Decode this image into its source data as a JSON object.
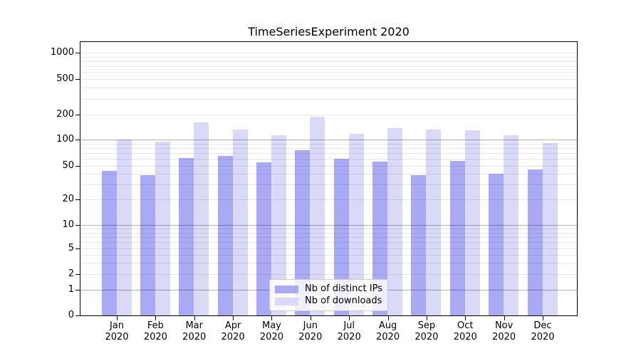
{
  "chart_data": {
    "type": "bar",
    "title": "TimeSeriesExperiment 2020",
    "categories": [
      "Jan",
      "Feb",
      "Mar",
      "Apr",
      "May",
      "Jun",
      "Jul",
      "Aug",
      "Sep",
      "Oct",
      "Nov",
      "Dec"
    ],
    "category_year": "2020",
    "series": [
      {
        "name": "Nb of distinct IPs",
        "color": "#a9a9f5",
        "values": [
          44,
          39,
          61,
          65,
          55,
          76,
          60,
          56,
          39,
          57,
          40,
          45
        ]
      },
      {
        "name": "Nb of downloads",
        "color": "#dadaf8",
        "values": [
          100,
          95,
          160,
          131,
          112,
          187,
          118,
          137,
          131,
          129,
          112,
          91
        ]
      }
    ],
    "y_ticks": [
      0,
      1,
      2,
      5,
      10,
      20,
      50,
      100,
      200,
      500,
      1000
    ],
    "y_axis": {
      "min": 0,
      "max": 1000,
      "scale": "log-like with zero baseline"
    },
    "x_axis": {
      "label_line2": "2020"
    },
    "grid": {
      "major_levels": [
        1,
        10,
        100
      ],
      "minor_levels_rule": "2-9 per decade and 1000",
      "orientation": "horizontal"
    },
    "legend": {
      "position": "inside-bottom-center",
      "entries": [
        "Nb of distinct IPs",
        "Nb of downloads"
      ]
    }
  },
  "colors": {
    "bar_ips": "#a9a9f5",
    "bar_downloads": "#dadaf8",
    "axis": "#000000",
    "background": "#ffffff",
    "legend_border": "#cccccc"
  }
}
